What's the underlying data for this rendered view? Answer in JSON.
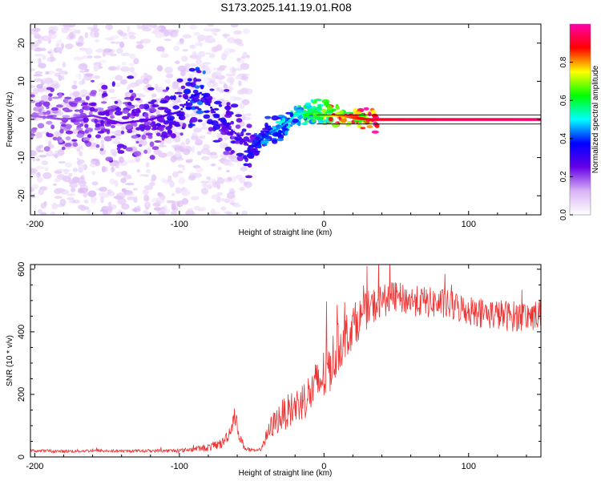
{
  "title": "S173.2025.141.19.01.R08",
  "chart_data": [
    {
      "type": "heatmap",
      "xlabel": "Height of straight line (km)",
      "ylabel": "Frequency (Hz)",
      "xlim": [
        -203,
        150
      ],
      "ylim": [
        -25,
        25
      ],
      "xticks": [
        -200,
        -100,
        0,
        100
      ],
      "yticks": [
        -20,
        -10,
        0,
        10,
        20
      ],
      "colorbar": {
        "label": "Normalized spectral amplitude",
        "range": [
          0,
          1
        ],
        "ticks": [
          0.0,
          0.2,
          0.4,
          0.6,
          0.8
        ],
        "tick_labels": [
          "0.0",
          "0.2",
          "0.4",
          "0.6",
          "0.8"
        ],
        "colormap": [
          "#ffffff",
          "#d9b3f5",
          "#6600e6",
          "#0000ff",
          "#00ffff",
          "#00ff00",
          "#ffff00",
          "#ff0000",
          "#ff00aa"
        ]
      },
      "ridge": {
        "x": [
          -203,
          -180,
          -160,
          -140,
          -120,
          -100,
          -92,
          -85,
          -78,
          -70,
          -60,
          -52,
          -48,
          -40,
          -30,
          -20,
          -12,
          -5,
          0,
          10,
          20,
          30,
          60,
          100,
          150
        ],
        "y": [
          1,
          0,
          1,
          -1,
          0,
          2,
          6,
          7,
          3,
          -1,
          -4,
          -7,
          -7,
          -4,
          -2,
          1,
          2,
          2,
          1,
          1,
          0.5,
          0,
          0,
          0,
          0
        ],
        "amplitude": [
          0.18,
          0.2,
          0.22,
          0.25,
          0.25,
          0.3,
          0.35,
          0.38,
          0.32,
          0.3,
          0.28,
          0.3,
          0.35,
          0.4,
          0.45,
          0.5,
          0.55,
          0.6,
          0.7,
          0.8,
          0.85,
          0.9,
          0.92,
          0.94,
          0.95
        ]
      }
    },
    {
      "type": "line",
      "xlabel": "Height of straight line (km)",
      "ylabel": "SNR (10 * v/v)",
      "xlim": [
        -203,
        150
      ],
      "ylim": [
        0,
        615
      ],
      "xticks": [
        -200,
        -100,
        0,
        100
      ],
      "yticks": [
        0,
        200,
        400,
        600
      ],
      "color": "#ee3333",
      "series": [
        {
          "x": [
            -203,
            -180,
            -160,
            -140,
            -120,
            -100,
            -90,
            -80,
            -70,
            -64,
            -62,
            -58,
            -55,
            -50,
            -45,
            -40,
            -36,
            -30,
            -20,
            -10,
            -5,
            0,
            5,
            10,
            20,
            30,
            40,
            50,
            60,
            70,
            80,
            90,
            100,
            110,
            120,
            130,
            140,
            150
          ],
          "y": [
            20,
            18,
            20,
            18,
            20,
            20,
            25,
            30,
            45,
            90,
            140,
            60,
            30,
            20,
            20,
            60,
            100,
            130,
            160,
            200,
            230,
            260,
            300,
            350,
            420,
            470,
            500,
            510,
            500,
            495,
            490,
            480,
            470,
            460,
            455,
            450,
            450,
            455
          ],
          "noise": [
            5,
            5,
            5,
            5,
            5,
            6,
            8,
            12,
            18,
            25,
            30,
            20,
            10,
            6,
            6,
            25,
            40,
            50,
            60,
            70,
            80,
            90,
            90,
            80,
            70,
            60,
            55,
            50,
            50,
            50,
            50,
            50,
            50,
            50,
            50,
            50,
            50,
            50
          ]
        }
      ]
    }
  ]
}
